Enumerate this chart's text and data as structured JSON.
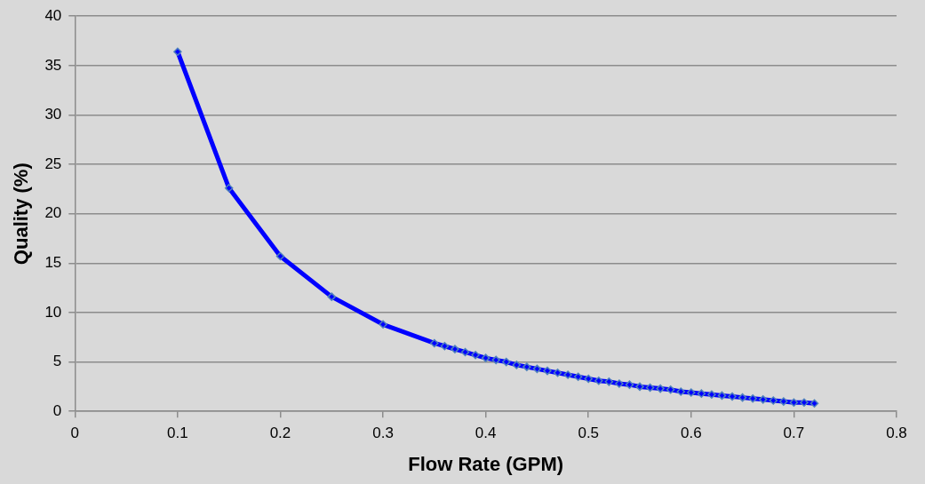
{
  "chart_data": {
    "type": "line",
    "xlabel": "Flow Rate (GPM)",
    "ylabel": "Quality (%)",
    "x": [
      0.1,
      0.15,
      0.2,
      0.25,
      0.3,
      0.35,
      0.36,
      0.37,
      0.38,
      0.39,
      0.4,
      0.41,
      0.42,
      0.43,
      0.44,
      0.45,
      0.46,
      0.47,
      0.48,
      0.49,
      0.5,
      0.51,
      0.52,
      0.53,
      0.54,
      0.55,
      0.56,
      0.57,
      0.58,
      0.59,
      0.6,
      0.61,
      0.62,
      0.63,
      0.64,
      0.65,
      0.66,
      0.67,
      0.68,
      0.69,
      0.7,
      0.71,
      0.72
    ],
    "series": [
      {
        "color": "#0000ff",
        "values": [
          36.4,
          22.6,
          15.7,
          11.6,
          8.8,
          6.9,
          6.6,
          6.3,
          6.0,
          5.7,
          5.4,
          5.2,
          5.0,
          4.7,
          4.5,
          4.3,
          4.1,
          3.9,
          3.7,
          3.5,
          3.3,
          3.1,
          3.0,
          2.8,
          2.7,
          2.5,
          2.4,
          2.3,
          2.2,
          2.0,
          1.9,
          1.8,
          1.7,
          1.6,
          1.5,
          1.4,
          1.3,
          1.2,
          1.1,
          1.0,
          0.9,
          0.9,
          0.8
        ]
      }
    ],
    "xlim": [
      0,
      0.8
    ],
    "xticks": [
      0,
      0.1,
      0.2,
      0.3,
      0.4,
      0.5,
      0.6,
      0.7,
      0.8
    ],
    "ylim": [
      0,
      40
    ],
    "yticks": [
      0,
      5,
      10,
      15,
      20,
      25,
      30,
      35,
      40
    ],
    "grid": "y",
    "legend": false,
    "marker": "diamond",
    "line_style": "solid"
  }
}
